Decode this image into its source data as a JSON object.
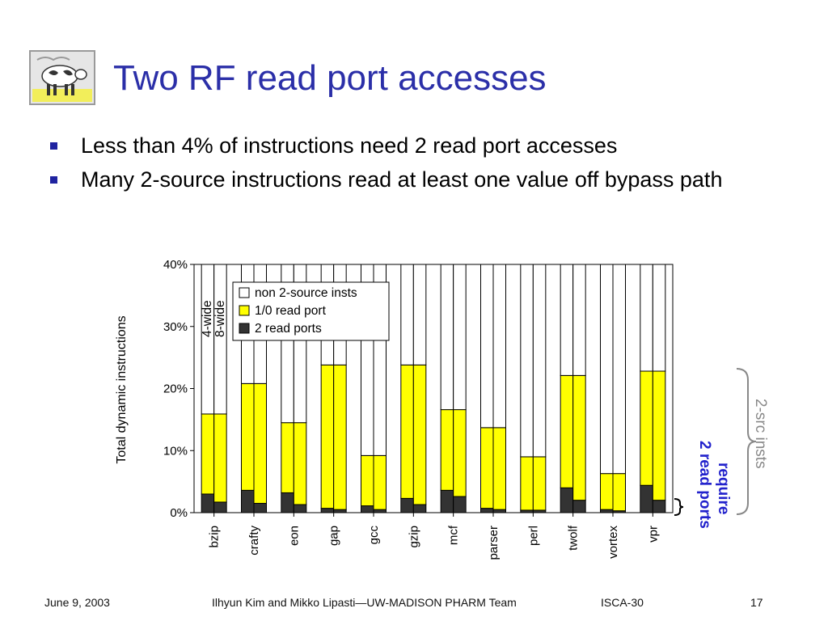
{
  "slide": {
    "title": "Two RF read port accesses",
    "bullets": [
      "Less than 4% of instructions need 2 read port accesses",
      "Many 2-source instructions read at least one value off bypass path"
    ],
    "footer": {
      "date": "June 9, 2003",
      "authors": "Ilhyun Kim and Mikko Lipasti—UW-MADISON PHARM Team",
      "conference": "ISCA-30",
      "page": "17"
    },
    "logo_icon": "cow-painting-icon"
  },
  "chart_data": {
    "type": "bar",
    "stacked": true,
    "title": "",
    "ylabel": "Total dynamic instructions",
    "xlabel": "",
    "ylim": [
      0,
      40
    ],
    "yticks": [
      "0%",
      "10%",
      "20%",
      "30%",
      "40%"
    ],
    "grid": false,
    "legend_position": "top-left",
    "categories": [
      "bzip",
      "crafty",
      "eon",
      "gap",
      "gcc",
      "gzip",
      "mcf",
      "parser",
      "perl",
      "twolf",
      "vortex",
      "vpr"
    ],
    "bar_variants": [
      "4-wide",
      "8-wide"
    ],
    "series": [
      {
        "name": "2 read ports",
        "color": "#333333",
        "values_4wide": [
          3.0,
          3.6,
          3.2,
          0.7,
          1.1,
          2.3,
          3.6,
          0.7,
          0.4,
          4.0,
          0.5,
          4.4
        ],
        "values_8wide": [
          1.7,
          1.5,
          1.3,
          0.5,
          0.5,
          1.3,
          2.6,
          0.5,
          0.4,
          2.0,
          0.3,
          2.0
        ]
      },
      {
        "name": "1/0 read port",
        "color": "#ffff00",
        "values_4wide": [
          12.9,
          17.2,
          11.3,
          23.1,
          8.1,
          21.5,
          13.0,
          13.0,
          8.6,
          18.1,
          5.8,
          18.4
        ],
        "values_8wide": [
          14.2,
          19.3,
          13.2,
          23.3,
          8.7,
          22.5,
          14.0,
          13.2,
          8.6,
          20.1,
          6.0,
          20.8
        ]
      },
      {
        "name": "non 2-source insts",
        "color": "#ffffff",
        "values_4wide": [
          24.1,
          19.2,
          25.5,
          16.2,
          30.8,
          16.2,
          23.4,
          26.3,
          31.0,
          17.9,
          33.7,
          17.2
        ],
        "values_8wide": [
          24.1,
          19.2,
          25.5,
          16.2,
          30.8,
          16.2,
          23.4,
          26.3,
          31.0,
          17.9,
          33.7,
          17.2
        ]
      }
    ],
    "annotations": {
      "variant_labels": [
        "4-wide",
        "8-wide"
      ],
      "src_brace": "2-src insts",
      "require_line1": "require",
      "require_line2": "2 read ports"
    },
    "colors": {
      "annotation_blue": "#2222cc",
      "brace_gray": "#888888"
    }
  }
}
